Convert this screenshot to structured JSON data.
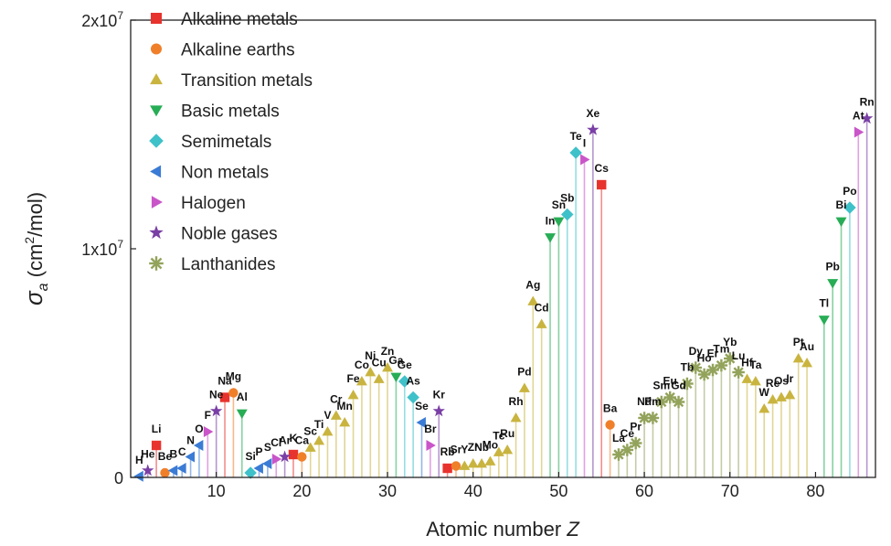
{
  "chart_data": {
    "type": "scatter",
    "xlabel": "Atomic number",
    "xlabel_var": "Z",
    "ylabel_symbol": "σ",
    "ylabel_sub": "a",
    "ylabel_unit": "(cm",
    "ylabel_unit_sup": "2",
    "ylabel_unit_end": "/mol)",
    "xlim": [
      0,
      87
    ],
    "ylim": [
      0,
      20000000
    ],
    "x_ticks": [
      10,
      20,
      30,
      40,
      50,
      60,
      70,
      80
    ],
    "y_ticks": [
      {
        "value": 0,
        "base": "0",
        "exp": ""
      },
      {
        "value": 10000000,
        "base": "1x10",
        "exp": "7"
      },
      {
        "value": 20000000,
        "base": "2x10",
        "exp": "7"
      }
    ],
    "grid": false,
    "legend_position": "top-left",
    "series": [
      {
        "name": "Alkaline metals",
        "marker": "square",
        "color": "#e8322d",
        "points": [
          [
            3,
            1400000,
            "Li"
          ],
          [
            11,
            3500000,
            "Na"
          ],
          [
            19,
            1000000,
            "K"
          ],
          [
            37,
            400000,
            "Rb"
          ],
          [
            55,
            12800000,
            "Cs"
          ]
        ]
      },
      {
        "name": "Alkaline earths",
        "marker": "circle",
        "color": "#f07f2a",
        "points": [
          [
            4,
            200000,
            "Be"
          ],
          [
            12,
            3700000,
            "Mg"
          ],
          [
            20,
            900000,
            "Ca"
          ],
          [
            38,
            500000,
            "Sr"
          ],
          [
            56,
            2300000,
            "Ba"
          ]
        ]
      },
      {
        "name": "Transition metals",
        "marker": "triangle-up",
        "color": "#c9b43f",
        "points": [
          [
            21,
            1300000,
            "Sc"
          ],
          [
            22,
            1600000,
            "Ti"
          ],
          [
            23,
            2000000,
            "V"
          ],
          [
            24,
            2700000,
            "Cr"
          ],
          [
            25,
            2400000,
            "Mn"
          ],
          [
            26,
            3600000,
            "Fe"
          ],
          [
            27,
            4200000,
            "Co"
          ],
          [
            28,
            4600000,
            "Ni"
          ],
          [
            29,
            4300000,
            "Cu"
          ],
          [
            30,
            4800000,
            "Zn"
          ],
          [
            39,
            500000,
            "Y"
          ],
          [
            40,
            600000,
            "Zr"
          ],
          [
            41,
            600000,
            "Nb"
          ],
          [
            42,
            700000,
            "Mo"
          ],
          [
            43,
            1100000,
            "Tc"
          ],
          [
            44,
            1200000,
            "Ru"
          ],
          [
            45,
            2600000,
            "Rh"
          ],
          [
            46,
            3900000,
            "Pd"
          ],
          [
            47,
            7700000,
            "Ag"
          ],
          [
            48,
            6700000,
            "Cd"
          ],
          [
            72,
            4300000,
            "Hf"
          ],
          [
            73,
            4200000,
            "Ta"
          ],
          [
            74,
            3000000,
            "W"
          ],
          [
            75,
            3400000,
            "Re"
          ],
          [
            76,
            3500000,
            "Os"
          ],
          [
            77,
            3600000,
            "Ir"
          ],
          [
            78,
            5200000,
            "Pt"
          ],
          [
            79,
            5000000,
            "Au"
          ]
        ]
      },
      {
        "name": "Basic metals",
        "marker": "triangle-down",
        "color": "#27ad55",
        "points": [
          [
            13,
            2800000,
            "Al"
          ],
          [
            31,
            4400000,
            "Ga"
          ],
          [
            49,
            10500000,
            "In"
          ],
          [
            50,
            11200000,
            "Sn"
          ],
          [
            81,
            6900000,
            "Tl"
          ],
          [
            82,
            8500000,
            "Pb"
          ],
          [
            83,
            11200000,
            "Bi"
          ]
        ]
      },
      {
        "name": "Semimetals",
        "marker": "diamond",
        "color": "#3fc1c9",
        "points": [
          [
            14,
            200000,
            "Si"
          ],
          [
            32,
            4200000,
            "Ge"
          ],
          [
            33,
            3500000,
            "As"
          ],
          [
            51,
            11500000,
            "Sb"
          ],
          [
            52,
            14200000,
            "Te"
          ],
          [
            84,
            11800000,
            "Po"
          ]
        ]
      },
      {
        "name": "Non metals",
        "marker": "triangle-left",
        "color": "#3a7bd5",
        "points": [
          [
            1,
            50000,
            "H"
          ],
          [
            5,
            300000,
            "B"
          ],
          [
            6,
            400000,
            "C"
          ],
          [
            7,
            900000,
            "N"
          ],
          [
            8,
            1400000,
            "O"
          ],
          [
            15,
            400000,
            "P"
          ],
          [
            16,
            600000,
            "S"
          ],
          [
            34,
            2400000,
            "Se"
          ]
        ]
      },
      {
        "name": "Halogen",
        "marker": "triangle-right",
        "color": "#c955c9",
        "points": [
          [
            9,
            2000000,
            "F"
          ],
          [
            17,
            800000,
            "Cl"
          ],
          [
            35,
            1400000,
            "Br"
          ],
          [
            53,
            13900000,
            "I"
          ],
          [
            85,
            15100000,
            "At"
          ]
        ]
      },
      {
        "name": "Noble gases",
        "marker": "star",
        "color": "#7a3fa5",
        "points": [
          [
            2,
            300000,
            "He"
          ],
          [
            10,
            2900000,
            "Ne"
          ],
          [
            18,
            900000,
            "Ar"
          ],
          [
            36,
            2900000,
            "Kr"
          ],
          [
            54,
            15200000,
            "Xe"
          ],
          [
            86,
            15700000,
            "Rn"
          ]
        ]
      },
      {
        "name": "Lanthanides",
        "marker": "asterisk",
        "color": "#93a35b",
        "points": [
          [
            57,
            1000000,
            "La"
          ],
          [
            58,
            1200000,
            "Ce"
          ],
          [
            59,
            1500000,
            "Pr"
          ],
          [
            60,
            2600000,
            "Nd"
          ],
          [
            61,
            2600000,
            "Pm"
          ],
          [
            62,
            3300000,
            "Sm"
          ],
          [
            63,
            3500000,
            "Eu"
          ],
          [
            64,
            3300000,
            "Gd"
          ],
          [
            65,
            4100000,
            "Tb"
          ],
          [
            66,
            4800000,
            "Dy"
          ],
          [
            67,
            4500000,
            "Ho"
          ],
          [
            68,
            4700000,
            "Er"
          ],
          [
            69,
            4900000,
            "Tm"
          ],
          [
            70,
            5200000,
            "Yb"
          ],
          [
            71,
            4600000,
            "Lu"
          ]
        ]
      }
    ]
  }
}
